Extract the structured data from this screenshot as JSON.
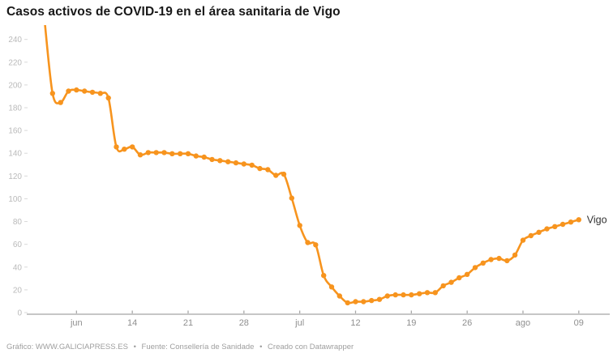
{
  "header": {
    "title": "Casos activos de COVID-19 en el área sanitaria de Vigo"
  },
  "footer": {
    "separator": "•",
    "parts": [
      "Gráfico: WWW.GALICIAPRESS.ES",
      "Fuente: Consellería de Sanidade",
      "Creado con Datawrapper"
    ]
  },
  "chart_data": {
    "type": "line",
    "title": "Casos activos de COVID-19 en el área sanitaria de Vigo",
    "series_label": "Vigo",
    "line_color": "#f7941e",
    "marker_color": "#f7941e",
    "series_label_color": "#333333",
    "axis_line_color": "#c6c6c6",
    "y_tick_label_color": "#bababa",
    "x_tick_label_color": "#8f8f8f",
    "grid": "off",
    "legend_position": "end-of-line",
    "ylim": [
      0,
      254
    ],
    "y_ticks": [
      0,
      20,
      40,
      60,
      80,
      100,
      120,
      140,
      160,
      180,
      200,
      220,
      240
    ],
    "x_tick_labels": [
      {
        "label": "jun",
        "day": 4
      },
      {
        "label": "14",
        "day": 11
      },
      {
        "label": "21",
        "day": 18
      },
      {
        "label": "28",
        "day": 25
      },
      {
        "label": "jul",
        "day": 32
      },
      {
        "label": "12",
        "day": 39
      },
      {
        "label": "19",
        "day": 46
      },
      {
        "label": "26",
        "day": 53
      },
      {
        "label": "ago",
        "day": 60
      },
      {
        "label": "09",
        "day": 67
      }
    ],
    "x": [
      "3 jun",
      "4 jun",
      "5 jun",
      "6 jun",
      "7 jun",
      "8 jun",
      "9 jun",
      "10 jun",
      "11 jun",
      "12 jun",
      "13 jun",
      "14 jun",
      "15 jun",
      "16 jun",
      "17 jun",
      "18 jun",
      "19 jun",
      "20 jun",
      "21 jun",
      "22 jun",
      "23 jun",
      "24 jun",
      "25 jun",
      "26 jun",
      "27 jun",
      "28 jun",
      "29 jun",
      "30 jun",
      "1 jul",
      "2 jul",
      "3 jul",
      "4 jul",
      "5 jul",
      "6 jul",
      "7 jul",
      "8 jul",
      "9 jul",
      "10 jul",
      "11 jul",
      "12 jul",
      "13 jul",
      "14 jul",
      "15 jul",
      "16 jul",
      "17 jul",
      "18 jul",
      "19 jul",
      "20 jul",
      "21 jul",
      "22 jul",
      "23 jul",
      "24 jul",
      "25 jul",
      "26 jul",
      "27 jul",
      "28 jul",
      "29 jul",
      "30 jul",
      "31 jul",
      "1 ago",
      "2 ago",
      "3 ago",
      "4 ago",
      "5 ago",
      "6 ago",
      "7 ago",
      "8 ago",
      "9 ago"
    ],
    "values": [
      258,
      194,
      186,
      196,
      197,
      196,
      195,
      194,
      190,
      147,
      145,
      147,
      140,
      142,
      142,
      142,
      141,
      141,
      141,
      139,
      138,
      136,
      135,
      134,
      133,
      132,
      131,
      128,
      127,
      122,
      123,
      102,
      78,
      63,
      61,
      34,
      24,
      16,
      10,
      11,
      11,
      12,
      13,
      16,
      17,
      17,
      17,
      18,
      19,
      19,
      25,
      28,
      32,
      35,
      41,
      45,
      48,
      49,
      47,
      52,
      65,
      69,
      72,
      75,
      77,
      79,
      81,
      83
    ]
  }
}
